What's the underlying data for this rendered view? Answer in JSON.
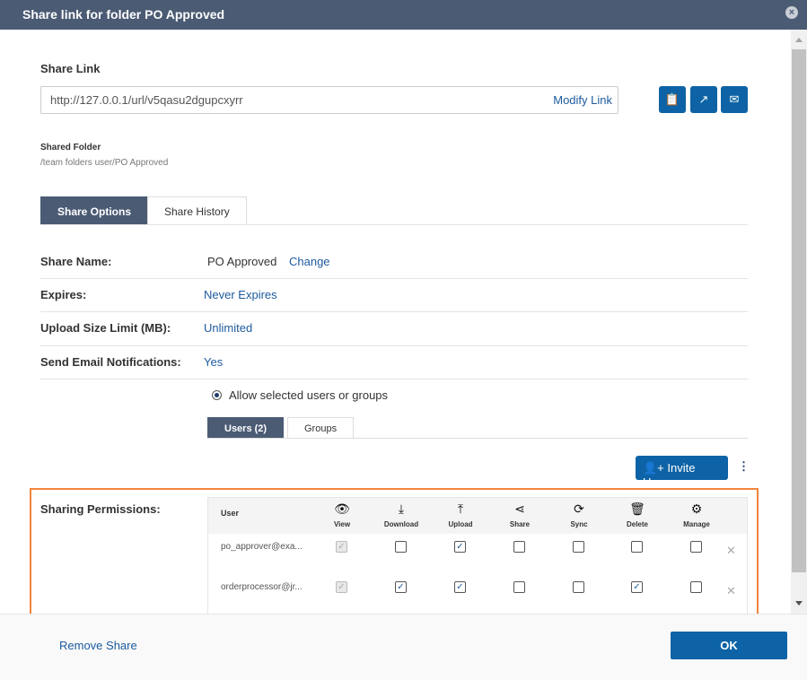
{
  "title": "Share link for folder PO Approved",
  "share_link": {
    "label": "Share Link",
    "url": "http://127.0.0.1/url/v5qasu2dgupcxyrr",
    "modify": "Modify Link"
  },
  "shared_folder": {
    "label": "Shared Folder",
    "path": "/team folders user/PO Approved"
  },
  "tabs": [
    "Share Options",
    "Share History"
  ],
  "options": {
    "share_name_label": "Share Name:",
    "share_name": "PO Approved",
    "change": "Change",
    "expires_label": "Expires:",
    "expires": "Never Expires",
    "upload_label": "Upload Size Limit (MB):",
    "upload": "Unlimited",
    "email_label": "Send Email Notifications:",
    "email": "Yes",
    "allow": "Allow selected users or groups"
  },
  "perm_tabs": [
    "Users (2)",
    "Groups"
  ],
  "invite": "Invite Users",
  "permissions": {
    "label": "Sharing Permissions:",
    "user_header": "User",
    "columns": [
      {
        "label": "View",
        "icon": "eye-icon",
        "g": "👁"
      },
      {
        "label": "Download",
        "icon": "download-icon",
        "g": "⤓"
      },
      {
        "label": "Upload",
        "icon": "upload-icon",
        "g": "⤒"
      },
      {
        "label": "Share",
        "icon": "share-icon",
        "g": "⋖"
      },
      {
        "label": "Sync",
        "icon": "sync-icon",
        "g": "⟳"
      },
      {
        "label": "Delete",
        "icon": "trash-icon",
        "g": "🗑"
      },
      {
        "label": "Manage",
        "icon": "gear-icon",
        "g": "⚙"
      }
    ],
    "rows": [
      {
        "user": "po_approver@exa...",
        "perms": [
          true,
          false,
          true,
          false,
          false,
          false,
          false
        ]
      },
      {
        "user": "orderprocessor@jr...",
        "perms": [
          true,
          true,
          true,
          false,
          false,
          true,
          false
        ]
      }
    ]
  },
  "footer": {
    "remove": "Remove Share",
    "ok": "OK"
  }
}
